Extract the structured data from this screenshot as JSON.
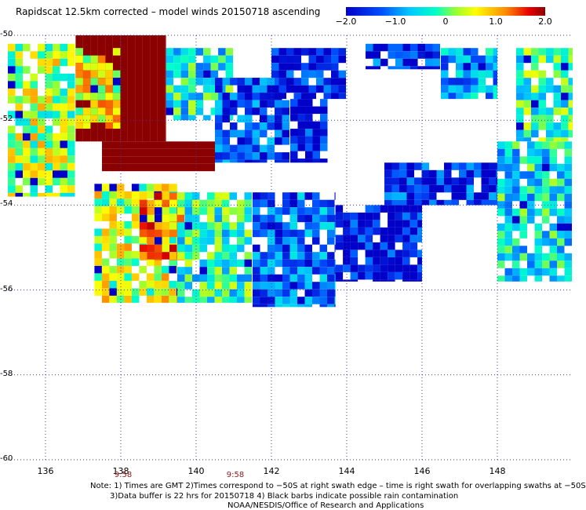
{
  "title": "Rapidscat 12.5km corrected – model winds 20150718 ascending",
  "colorbar": {
    "labels": [
      "−2.0",
      "−1.0",
      "0",
      "1.0",
      "2.0"
    ],
    "values": [
      -2.0,
      -1.0,
      0,
      1.0,
      2.0
    ],
    "range": [
      -2.0,
      2.0
    ]
  },
  "chart_data": {
    "type": "heatmap",
    "title": "Rapidscat 12.5km corrected – model winds 20150718 ascending",
    "xlim": [
      135,
      150
    ],
    "ylim": [
      -60,
      -50
    ],
    "x_ticks": [
      "136",
      "138",
      "140",
      "142",
      "144",
      "146",
      "148"
    ],
    "x_tick_values": [
      136,
      138,
      140,
      142,
      144,
      146,
      148
    ],
    "y_ticks": [
      "-50",
      "-52",
      "-54",
      "-56",
      "-58",
      "-60"
    ],
    "y_tick_values": [
      -50,
      -52,
      -54,
      -56,
      -58,
      -60
    ],
    "grid": true,
    "color_range": [
      -2.0,
      2.0
    ],
    "swath_times": [
      {
        "label": "9:58",
        "lon": 138
      },
      {
        "label": "9:58",
        "lon": 141
      }
    ],
    "regions": [
      {
        "lon": [
          136.8,
          139.2
        ],
        "lat": [
          -52.5,
          -50.0
        ],
        "value": 2.0
      },
      {
        "lon": [
          137.5,
          140.5
        ],
        "lat": [
          -53.2,
          -52.5
        ],
        "value": 2.0
      },
      {
        "lon": [
          135.0,
          136.8
        ],
        "lat": [
          -53.8,
          -50.2
        ],
        "value": 0.3
      },
      {
        "lon": [
          136.8,
          138.0
        ],
        "lat": [
          -52.2,
          -50.3
        ],
        "value": 0.6
      },
      {
        "lon": [
          139.2,
          141.0
        ],
        "lat": [
          -52.0,
          -50.3
        ],
        "value": -0.4
      },
      {
        "lon": [
          140.5,
          142.5
        ],
        "lat": [
          -53.0,
          -51.0
        ],
        "value": -1.4
      },
      {
        "lon": [
          142.5,
          143.5
        ],
        "lat": [
          -53.0,
          -51.5
        ],
        "value": -1.8
      },
      {
        "lon": [
          137.3,
          139.5
        ],
        "lat": [
          -56.3,
          -53.5
        ],
        "value": 0.4
      },
      {
        "lon": [
          138.5,
          140.0
        ],
        "lat": [
          -55.3,
          -53.7
        ],
        "value": 1.1
      },
      {
        "lon": [
          139.5,
          141.5
        ],
        "lat": [
          -56.3,
          -53.7
        ],
        "value": -0.3
      },
      {
        "lon": [
          141.5,
          143.7
        ],
        "lat": [
          -56.4,
          -53.7
        ],
        "value": -1.2
      },
      {
        "lon": [
          143.7,
          146.0
        ],
        "lat": [
          -55.8,
          -54.0
        ],
        "value": -1.9
      },
      {
        "lon": [
          145.0,
          148.0
        ],
        "lat": [
          -54.0,
          -53.0
        ],
        "value": -1.6
      },
      {
        "lon": [
          148.0,
          150.0
        ],
        "lat": [
          -55.8,
          -52.5
        ],
        "value": -0.5
      },
      {
        "lon": [
          148.5,
          150.0
        ],
        "lat": [
          -52.5,
          -50.3
        ],
        "value": -0.2
      },
      {
        "lon": [
          142.0,
          144.0
        ],
        "lat": [
          -51.5,
          -50.3
        ],
        "value": -1.8
      },
      {
        "lon": [
          144.5,
          146.5
        ],
        "lat": [
          -50.8,
          -50.2
        ],
        "value": -1.6
      },
      {
        "lon": [
          146.5,
          148.0
        ],
        "lat": [
          -51.5,
          -50.3
        ],
        "value": -0.9
      }
    ]
  },
  "notes": {
    "line1": "Note: 1) Times are GMT 2)Times correspond to −50S at right swath edge – time is right swath for overlapping swaths at −50S",
    "line2": "3)Data buffer is 22 hrs for 20150718 4) Black barbs indicate possible rain contamination",
    "line3": "NOAA/NESDIS/Office of Research and Applications"
  }
}
